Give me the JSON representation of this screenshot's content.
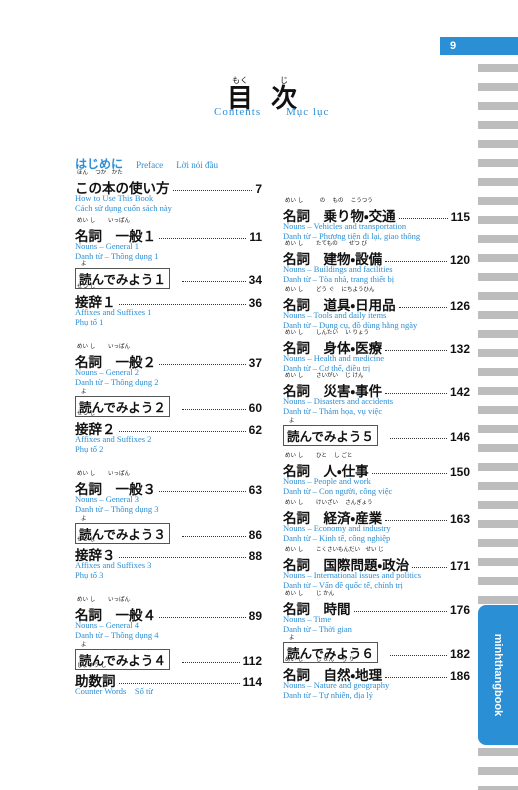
{
  "page_number": "9",
  "header": {
    "title_chars": [
      {
        "ruby": "もく",
        "text": "目"
      },
      {
        "ruby": "じ",
        "text": "次"
      }
    ],
    "subtitle_en": "Contents",
    "subtitle_vi": "Mục lục"
  },
  "intro": {
    "title": "はじめに",
    "en": "Preface",
    "vi": "Lời nói đầu"
  },
  "side_tab": "minhthangbook",
  "left_column": [
    {
      "ruby": "ほん　 つか　かた",
      "title": "この本の使い方",
      "page": 7,
      "en": "How to Use This Book",
      "vi": "Cách sử dụng cuốn sách này"
    },
    {
      "ruby": "めい し　　 いっぱん",
      "title": "名詞　一般１",
      "page": 11,
      "en": "Nouns – General 1",
      "vi": "Danh từ – Thông dụng 1"
    },
    {
      "ruby": "よ",
      "title": "読んでみよう１",
      "page": 34,
      "boxed": true
    },
    {
      "ruby": "せつ じ",
      "title": "接辞１",
      "page": 36,
      "en": "Affixes and Suffixes 1",
      "vi": "Phụ tố 1"
    },
    {
      "ruby": "めい し　　 いっぱん",
      "title": "名詞　一般２",
      "page": 37,
      "en": "Nouns – General 2",
      "vi": "Danh từ – Thông dụng 2"
    },
    {
      "ruby": "よ",
      "title": "読んでみよう２",
      "page": 60,
      "boxed": true
    },
    {
      "ruby": "せつ じ",
      "title": "接辞２",
      "page": 62,
      "en": "Affixes and Suffixes 2",
      "vi": "Phụ tố 2"
    },
    {
      "ruby": "めい し　　 いっぱん",
      "title": "名詞　一般３",
      "page": 63,
      "en": "Nouns – General 3",
      "vi": "Danh từ – Thông dụng 3"
    },
    {
      "ruby": "よ",
      "title": "読んでみよう３",
      "page": 86,
      "boxed": true
    },
    {
      "ruby": "せつ じ",
      "title": "接辞３",
      "page": 88,
      "en": "Affixes and Suffixes 3",
      "vi": "Phụ tố 3"
    },
    {
      "ruby": "めい し　　 いっぱん",
      "title": "名詞　一般４",
      "page": 89,
      "en": "Nouns – General 4",
      "vi": "Danh từ – Thông dụng 4"
    },
    {
      "ruby": "よ",
      "title": "読んでみよう４",
      "page": 112,
      "boxed": true
    },
    {
      "ruby": "じょすう し",
      "title": "助数詞",
      "page": 114,
      "en": "Counter Words　Số từ"
    }
  ],
  "right_column": [
    {
      "ruby": "めい し　　　の　 もの　 こうつう",
      "title": "名詞　乗り物・交通",
      "page": 115,
      "en": "Nouns – Vehicles and transportation",
      "vi": "Danh từ – Phương tiện đi lại, giao thông"
    },
    {
      "ruby": "めい し　　 たてもの　　せつ び",
      "title": "名詞　建物・設備",
      "page": 120,
      "en": "Nouns – Buildings and facilities",
      "vi": "Danh từ – Tòa nhà, trang thiết bị"
    },
    {
      "ruby": "めい し　　 どう ぐ　 にちようひん",
      "title": "名詞　道具・日用品",
      "page": 126,
      "en": "Nouns – Tools and daily items",
      "vi": "Danh từ – Dụng cụ, đồ dùng hằng ngày"
    },
    {
      "ruby": "めい し　　 しんたい　 い りょう",
      "title": "名詞　身体・医療",
      "page": 132,
      "en": "Nouns – Health and medicine",
      "vi": "Danh từ – Cơ thể, điều trị"
    },
    {
      "ruby": "めい し　　 さいがい　 じ けん",
      "title": "名詞　災害・事件",
      "page": 142,
      "en": "Nouns – Disasters and accidents",
      "vi": "Danh từ – Thảm họa, vụ việc"
    },
    {
      "ruby": "よ",
      "title": "読んでみよう５",
      "page": 146,
      "boxed": true
    },
    {
      "ruby": "めい し　　 ひと　 し ごと",
      "title": "名詞　人・仕事",
      "page": 150,
      "en": "Nouns – People and work",
      "vi": "Danh từ – Con người, công việc"
    },
    {
      "ruby": "めい し　　 けいざい　 さんぎょう",
      "title": "名詞　経済・産業",
      "page": 163,
      "en": "Nouns – Economy and industry",
      "vi": "Danh từ – Kinh tế, công nghiệp"
    },
    {
      "ruby": "めい し　　 こくさいもんだい　せい じ",
      "title": "名詞　国際問題・政治",
      "page": 171,
      "en": "Nouns – International issues and politics",
      "vi": "Danh từ – Vấn đề quốc tế, chính trị"
    },
    {
      "ruby": "めい し　　 じ かん",
      "title": "名詞　時間",
      "page": 176,
      "en": "Nouns – Time",
      "vi": "Danh từ – Thời gian"
    },
    {
      "ruby": "よ",
      "title": "読んでみよう６",
      "page": 182,
      "boxed": true
    },
    {
      "ruby": "めい し　　 し ぜん　 ち り",
      "title": "名詞　自然・地理",
      "page": 186,
      "en": "Nouns – Nature and geography",
      "vi": "Danh từ – Tự nhiên, địa lý"
    }
  ]
}
